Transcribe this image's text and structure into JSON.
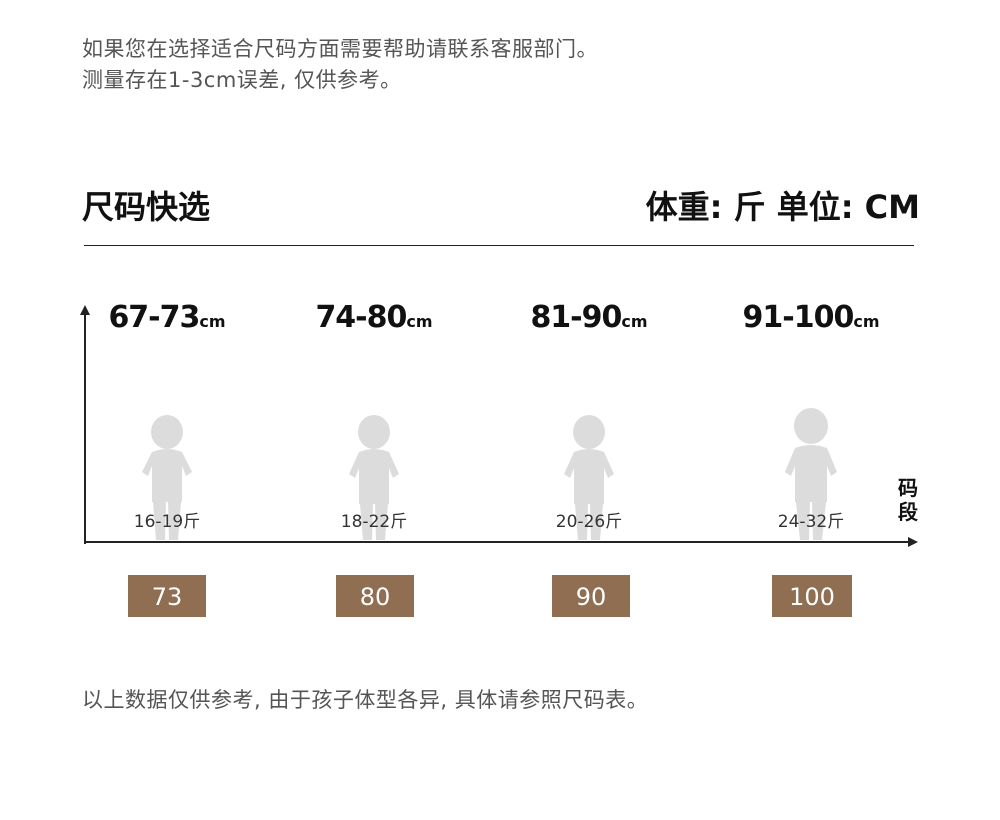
{
  "intro": {
    "line1": "如果您在选择适合尺码方面需要帮助请联系客服部门。",
    "line2": "测量存在1-3cm误差, 仅供参考。"
  },
  "header": {
    "title": "尺码快选",
    "unit_info": "体重: 斤  单位: CM"
  },
  "chart": {
    "x_axis_label_line1": "码",
    "x_axis_label_line2": "段",
    "sizes": [
      {
        "height_range": "67-73",
        "height_unit": "cm",
        "weight": "16-19斤",
        "size": "73"
      },
      {
        "height_range": "74-80",
        "height_unit": "cm",
        "weight": "18-22斤",
        "size": "80"
      },
      {
        "height_range": "81-90",
        "height_unit": "cm",
        "weight": "20-26斤",
        "size": "90"
      },
      {
        "height_range": "91-100",
        "height_unit": "cm",
        "weight": "24-32斤",
        "size": "100"
      }
    ]
  },
  "footer": {
    "note": "以上数据仅供参考, 由于孩子体型各异, 具体请参照尺码表。"
  },
  "colors": {
    "size_box": "#8f6e52",
    "figure": "#d9d9d9"
  }
}
